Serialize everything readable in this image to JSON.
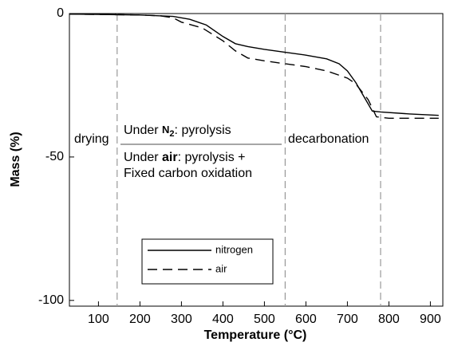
{
  "chart_data": {
    "type": "line",
    "xlabel": "Temperature (°C)",
    "ylabel": "Mass (%)",
    "xlim": [
      30,
      930
    ],
    "ylim": [
      -102,
      0
    ],
    "xticks": [
      100,
      200,
      300,
      400,
      500,
      600,
      700,
      800,
      900
    ],
    "yticks": [
      0,
      -50,
      -100
    ],
    "legend": "lower center",
    "series": [
      {
        "name": "nitrogen",
        "color": "#000000",
        "dash": "solid",
        "x": [
          30,
          100,
          200,
          280,
          320,
          360,
          400,
          430,
          460,
          500,
          550,
          600,
          650,
          680,
          700,
          720,
          740,
          760,
          780,
          850,
          920
        ],
        "values": [
          -0.2,
          -0.3,
          -0.5,
          -1,
          -2,
          -4,
          -8,
          -10.5,
          -11.5,
          -12.5,
          -13.5,
          -14.5,
          -15.8,
          -17.5,
          -20,
          -24,
          -29,
          -34,
          -34.3,
          -35,
          -35.5
        ]
      },
      {
        "name": "air",
        "color": "#000000",
        "dash": "dashed",
        "x": [
          30,
          100,
          200,
          250,
          280,
          300,
          350,
          400,
          430,
          460,
          500,
          550,
          600,
          650,
          700,
          720,
          750,
          770,
          800,
          920
        ],
        "values": [
          -0.2,
          -0.3,
          -0.5,
          -0.8,
          -1.5,
          -3,
          -5,
          -9.5,
          -13,
          -15.5,
          -16.5,
          -17.5,
          -18.5,
          -20,
          -22.5,
          -24.5,
          -30,
          -36,
          -36.5,
          -36.5
        ]
      }
    ],
    "vlines": [
      145,
      550,
      780
    ],
    "annotations": {
      "drying": "drying",
      "n2": [
        "Under ",
        "N",
        "2",
        ": pyrolysis"
      ],
      "air": [
        "Under ",
        "air",
        ": pyrolysis +"
      ],
      "air2": "Fixed carbon oxidation",
      "decarbonation": "decarbonation"
    }
  }
}
